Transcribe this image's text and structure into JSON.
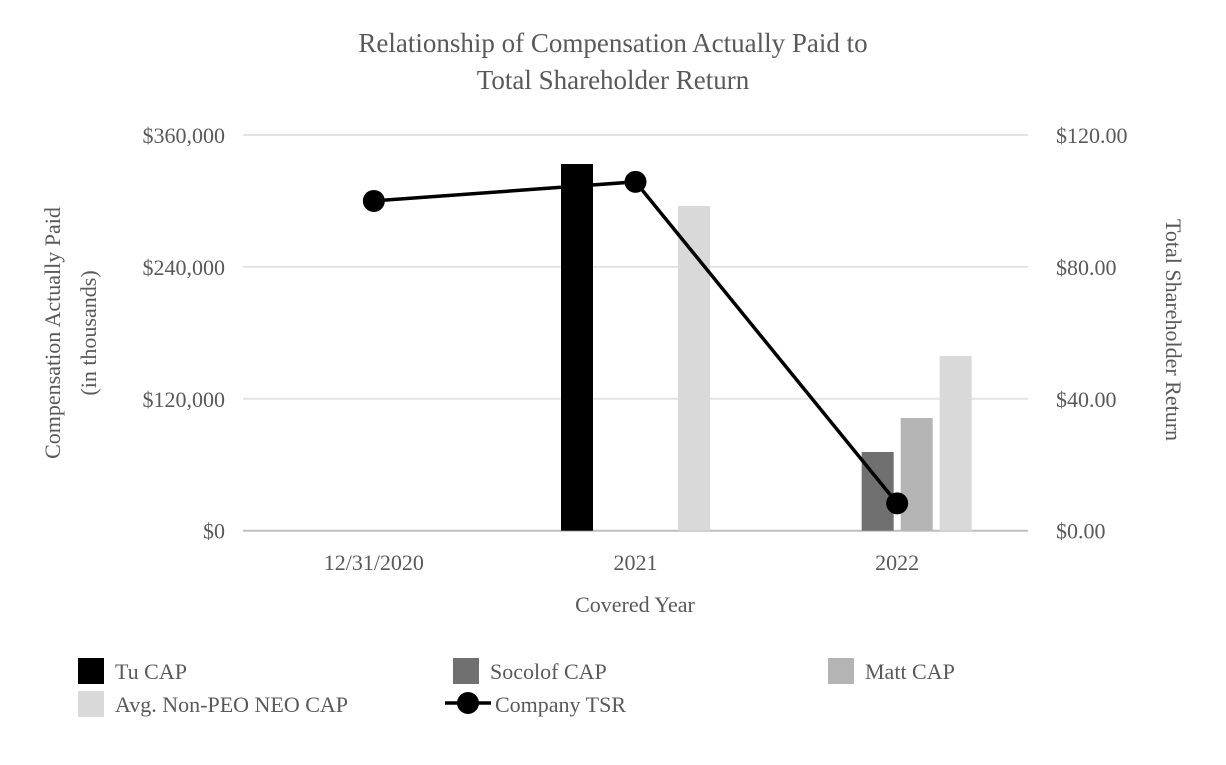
{
  "chart_data": {
    "type": "bar",
    "title": "Relationship of Compensation Actually Paid to Total Shareholder Return",
    "title_lines": [
      "Relationship of Compensation Actually Paid to",
      "Total Shareholder Return"
    ],
    "xlabel": "Covered Year",
    "ylabel": "Compensation Actually Paid (in thousands)",
    "ylabel_lines": [
      "Compensation Actually Paid",
      "(in thousands)"
    ],
    "y2label": "Total Shareholder Return",
    "categories": [
      "12/31/2020",
      "2021",
      "2022"
    ],
    "ylim": [
      0,
      360000
    ],
    "y2lim": [
      0,
      120
    ],
    "yticks": [
      "$0",
      "$120,000",
      "$240,000",
      "$360,000"
    ],
    "y2ticks": [
      "$0.00",
      "$40.00",
      "$80.00",
      "$120.00"
    ],
    "grid": true,
    "legend_placement": "bottom",
    "series": [
      {
        "name": "Tu CAP",
        "kind": "bar",
        "color": "#000000",
        "values": [
          null,
          333600,
          null
        ]
      },
      {
        "name": "Socolof CAP",
        "kind": "bar",
        "color": "#707070",
        "values": [
          null,
          null,
          71600
        ]
      },
      {
        "name": "Matt CAP",
        "kind": "bar",
        "color": "#b4b4b4",
        "values": [
          null,
          null,
          102500
        ]
      },
      {
        "name": "Avg. Non-PEO NEO CAP",
        "kind": "bar",
        "color": "#d9d9d9",
        "values": [
          null,
          295400,
          158900
        ]
      },
      {
        "name": "Company TSR",
        "kind": "line",
        "axis": "right",
        "color": "#000000",
        "values": [
          100.0,
          105.8,
          8.3
        ]
      }
    ]
  }
}
